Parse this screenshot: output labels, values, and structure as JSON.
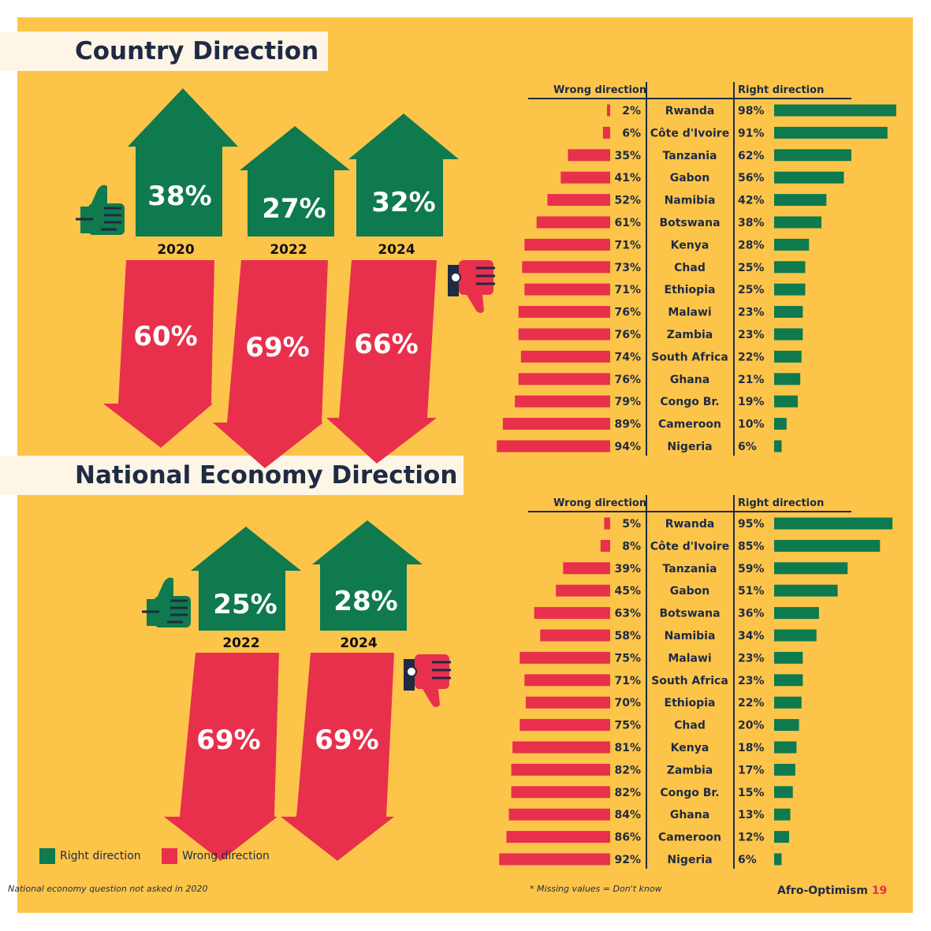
{
  "colors": {
    "background": "#fcc54a",
    "right": "#0e7a4e",
    "wrong": "#e8304d",
    "banner": "#fdf6e6",
    "text": "#1f2a44"
  },
  "country_direction": {
    "title": "Country Direction",
    "years": [
      {
        "year": "2020",
        "right": "38%",
        "wrong": "60%"
      },
      {
        "year": "2022",
        "right": "27%",
        "wrong": "69%"
      },
      {
        "year": "2024",
        "right": "32%",
        "wrong": "66%"
      }
    ],
    "table_header_wrong": "Wrong direction",
    "table_header_right": "Right direction"
  },
  "economy_direction": {
    "title": "National Economy Direction",
    "years": [
      {
        "year": "2022",
        "right": "25%",
        "wrong": "69%"
      },
      {
        "year": "2024",
        "right": "28%",
        "wrong": "69%"
      }
    ],
    "table_header_wrong": "Wrong direction",
    "table_header_right": "Right direction"
  },
  "chart_data": [
    {
      "type": "bar",
      "title": "Country Direction",
      "categories": [
        "Rwanda",
        "Côte d'Ivoire",
        "Tanzania",
        "Gabon",
        "Namibia",
        "Botswana",
        "Kenya",
        "Chad",
        "Ethiopia",
        "Malawi",
        "Zambia",
        "South Africa",
        "Ghana",
        "Congo Br.",
        "Cameroon",
        "Nigeria"
      ],
      "series": [
        {
          "name": "Wrong direction",
          "values": [
            2,
            6,
            35,
            41,
            52,
            61,
            71,
            73,
            71,
            76,
            76,
            74,
            76,
            79,
            89,
            94
          ]
        },
        {
          "name": "Right direction",
          "values": [
            98,
            91,
            62,
            56,
            42,
            38,
            28,
            25,
            25,
            23,
            23,
            22,
            21,
            19,
            10,
            6
          ]
        }
      ]
    },
    {
      "type": "bar",
      "title": "National Economy Direction",
      "categories": [
        "Rwanda",
        "Côte d'Ivoire",
        "Tanzania",
        "Gabon",
        "Botswana",
        "Namibia",
        "Malawi",
        "South Africa",
        "Ethiopia",
        "Chad",
        "Kenya",
        "Zambia",
        "Congo Br.",
        "Ghana",
        "Cameroon",
        "Nigeria"
      ],
      "series": [
        {
          "name": "Wrong direction",
          "values": [
            5,
            8,
            39,
            45,
            63,
            58,
            75,
            71,
            70,
            75,
            81,
            82,
            82,
            84,
            86,
            92
          ]
        },
        {
          "name": "Right direction",
          "values": [
            95,
            85,
            59,
            51,
            36,
            34,
            23,
            23,
            22,
            20,
            18,
            17,
            15,
            13,
            12,
            6
          ]
        }
      ]
    }
  ],
  "legend": {
    "right": "Right direction",
    "wrong": "Wrong direction"
  },
  "footnotes": {
    "left": "National economy question not asked in 2020",
    "right": "* Missing values = Don't know"
  },
  "brand": {
    "name": "Afro-Optimism",
    "page": "19"
  }
}
